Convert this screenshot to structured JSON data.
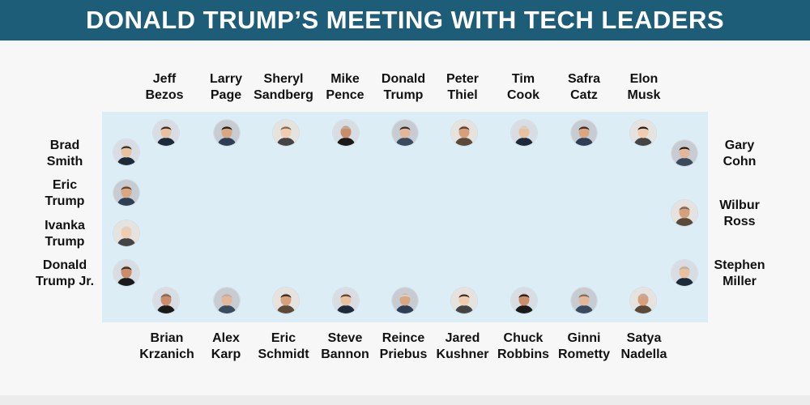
{
  "title": "DONALD TRUMP’S MEETING WITH TECH LEADERS",
  "top_row": [
    {
      "first": "Jeff",
      "last": "Bezos"
    },
    {
      "first": "Larry",
      "last": "Page"
    },
    {
      "first": "Sheryl",
      "last": "Sandberg"
    },
    {
      "first": "Mike",
      "last": "Pence"
    },
    {
      "first": "Donald",
      "last": "Trump"
    },
    {
      "first": "Peter",
      "last": "Thiel"
    },
    {
      "first": "Tim",
      "last": "Cook"
    },
    {
      "first": "Safra",
      "last": "Catz"
    },
    {
      "first": "Elon",
      "last": "Musk"
    }
  ],
  "bottom_row": [
    {
      "first": "Brian",
      "last": "Krzanich"
    },
    {
      "first": "Alex",
      "last": "Karp"
    },
    {
      "first": "Eric",
      "last": "Schmidt"
    },
    {
      "first": "Steve",
      "last": "Bannon"
    },
    {
      "first": "Reince",
      "last": "Priebus"
    },
    {
      "first": "Jared",
      "last": "Kushner"
    },
    {
      "first": "Chuck",
      "last": "Robbins"
    },
    {
      "first": "Ginni",
      "last": "Rometty"
    },
    {
      "first": "Satya",
      "last": "Nadella"
    }
  ],
  "left_side": [
    {
      "first": "Brad",
      "last": "Smith"
    },
    {
      "first": "Eric",
      "last": "Trump"
    },
    {
      "first": "Ivanka",
      "last": "Trump"
    },
    {
      "first": "Donald",
      "last": "Trump Jr."
    }
  ],
  "right_side": [
    {
      "first": "Gary",
      "last": "Cohn"
    },
    {
      "first": "Wilbur",
      "last": "Ross"
    },
    {
      "first": "Stephen",
      "last": "Miller"
    }
  ],
  "colors": {
    "header_bg": "#1e5d78",
    "table_bg": "#dcedf6",
    "page_bg": "#f7f7f7"
  }
}
